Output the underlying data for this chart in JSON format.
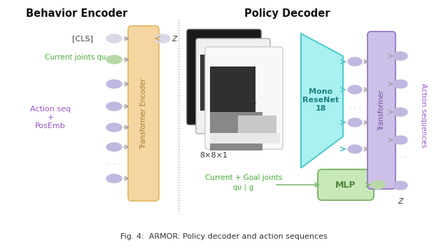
{
  "bg_color": "#ffffff",
  "behavior_encoder_title": "Behavior Encoder",
  "policy_decoder_title": "Policy Decoder",
  "transformer_encoder_label": "Transformer Encoder",
  "transformer_label": "Transformer",
  "mono_resenet_label": "Mono\nReseNet\n18",
  "mlp_label": "MLP",
  "action_sequences_label": "Action sequences",
  "cls_label": "[CLS]",
  "z_label": "z",
  "z_label2": "z",
  "current_joints_label": "Current joints qᴜ",
  "action_seq_label": "Action seq\n+\nPosEmb",
  "current_goal_label": "Current + Goal joints",
  "current_goal_sub": "qᴜ ∣ g",
  "size_label": "8×8×1",
  "transformer_enc_color": "#f5d5a0",
  "transformer_enc_edge": "#ddb860",
  "transformer_dec_color": "#ccc0e8",
  "transformer_dec_edge": "#9070c0",
  "mono_resnet_color": "#a0f0f0",
  "mono_resnet_edge": "#40c8c8",
  "mlp_color": "#c8e8b8",
  "mlp_edge": "#80b870",
  "node_color_purple": "#c0b8e0",
  "node_color_green": "#b8d8a8",
  "node_color_gray": "#d8d8e8",
  "arrow_color": "#a0a0a0",
  "arrow_color_orange": "#d8a840",
  "arrow_color_cyan": "#50c8c8",
  "arrow_color_green": "#80b870",
  "title_color": "#111111",
  "green_text_color": "#44aa33",
  "purple_text_color": "#9955cc",
  "divider_color": "#aaaaaa",
  "enc_text_color": "#a08030",
  "dec_text_color": "#7050a0",
  "mono_text_color": "#208080",
  "caption": "Fig. 4:  ARMOR: Policy decoder and action sequences"
}
